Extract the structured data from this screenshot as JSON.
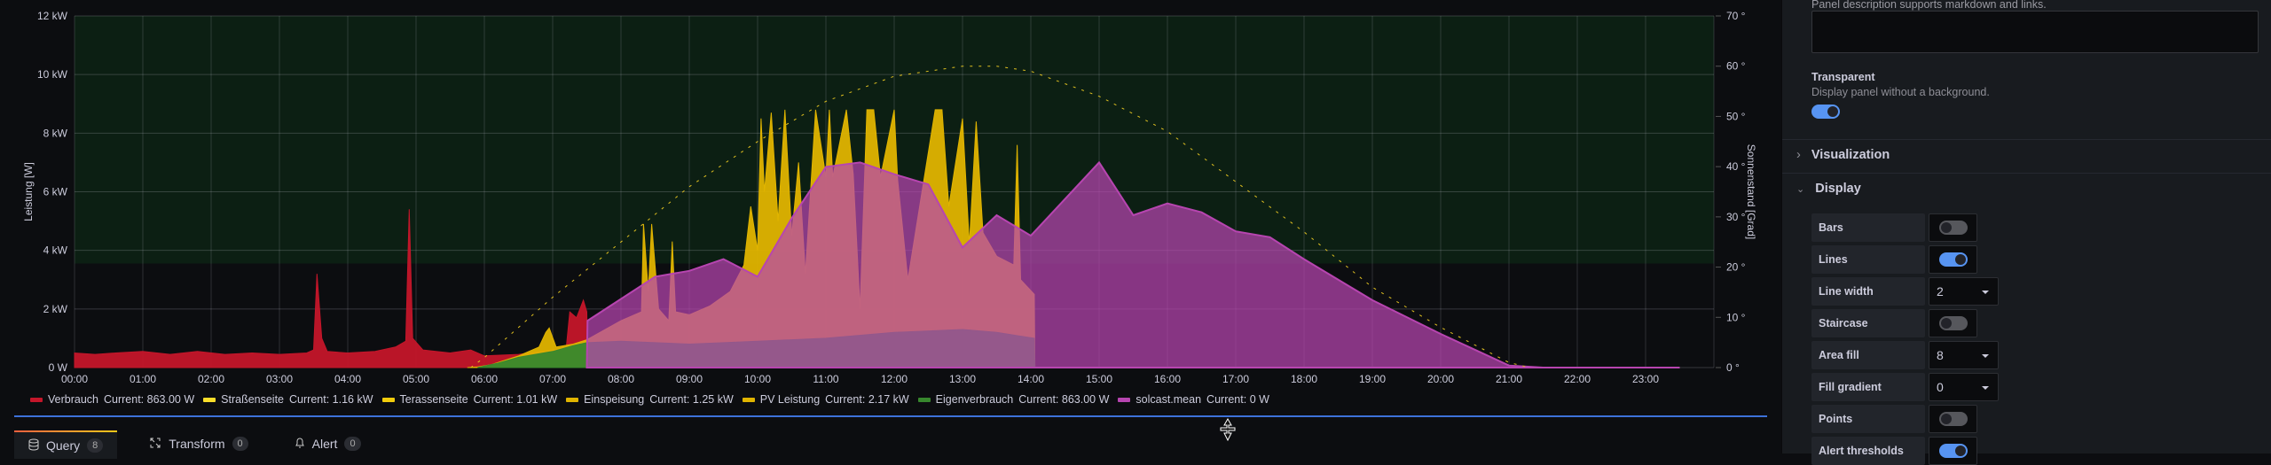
{
  "chart_data": {
    "type": "area",
    "ylabel": "Leistung [W]",
    "y2label": "Sonnenstand [Grad]",
    "ylim": [
      0,
      12000
    ],
    "y2lim": [
      0,
      70
    ],
    "yticks": [
      "0 W",
      "2 kW",
      "4 kW",
      "6 kW",
      "8 kW",
      "10 kW",
      "12 kW"
    ],
    "y2ticks": [
      "0 °",
      "10 °",
      "20 °",
      "30 °",
      "40 °",
      "50 °",
      "60 °",
      "70 °"
    ],
    "xticks": [
      "00:00",
      "01:00",
      "02:00",
      "03:00",
      "04:00",
      "05:00",
      "06:00",
      "07:00",
      "08:00",
      "09:00",
      "10:00",
      "11:00",
      "12:00",
      "13:00",
      "14:00",
      "15:00",
      "16:00",
      "17:00",
      "18:00",
      "19:00",
      "20:00",
      "21:00",
      "22:00",
      "23:00"
    ],
    "grid": true,
    "threshold": {
      "above_kw": 3.55,
      "color": "#0c1f13"
    },
    "legend_position": "bottom",
    "series": [
      {
        "name": "Verbrauch",
        "current": "863.00 W",
        "color": "#c4162a",
        "points": [
          [
            0,
            0.5
          ],
          [
            0.3,
            0.45
          ],
          [
            0.6,
            0.5
          ],
          [
            1,
            0.55
          ],
          [
            1.4,
            0.45
          ],
          [
            1.8,
            0.55
          ],
          [
            2.2,
            0.45
          ],
          [
            2.6,
            0.5
          ],
          [
            3,
            0.45
          ],
          [
            3.4,
            0.5
          ],
          [
            3.5,
            0.6
          ],
          [
            3.55,
            3.2
          ],
          [
            3.62,
            1.0
          ],
          [
            3.7,
            0.55
          ],
          [
            4,
            0.5
          ],
          [
            4.4,
            0.55
          ],
          [
            4.7,
            0.7
          ],
          [
            4.85,
            0.9
          ],
          [
            4.9,
            5.4
          ],
          [
            4.95,
            1.0
          ],
          [
            5.1,
            0.6
          ],
          [
            5.5,
            0.5
          ],
          [
            5.8,
            0.6
          ],
          [
            6,
            0.4
          ],
          [
            6.5,
            0.45
          ],
          [
            7,
            0.6
          ],
          [
            7.2,
            0.7
          ],
          [
            7.25,
            1.9
          ],
          [
            7.35,
            1.7
          ],
          [
            7.45,
            2.3
          ],
          [
            7.5,
            1.9
          ],
          [
            7.51,
            0
          ]
        ]
      },
      {
        "name": "Straßenseite",
        "current": "1.16 kW",
        "color": "#fade2a",
        "points": []
      },
      {
        "name": "Terassenseite",
        "current": "1.01 kW",
        "color": "#f2cc0c",
        "points": []
      },
      {
        "name": "Einspeisung",
        "current": "1.25 kW",
        "color": "#e0b400",
        "points": []
      },
      {
        "name": "PV Leistung",
        "current": "2.17 kW",
        "color": "#e0b400",
        "points": [
          [
            5.75,
            0
          ],
          [
            5.9,
            0.02
          ],
          [
            6.1,
            0.1
          ],
          [
            6.5,
            0.4
          ],
          [
            6.8,
            0.7
          ],
          [
            6.9,
            1.2
          ],
          [
            6.95,
            1.35
          ],
          [
            7.05,
            0.7
          ],
          [
            7.3,
            0.8
          ],
          [
            7.5,
            0.95
          ],
          [
            8,
            1.6
          ],
          [
            8.3,
            1.9
          ],
          [
            8.33,
            4.9
          ],
          [
            8.4,
            2.6
          ],
          [
            8.45,
            4.9
          ],
          [
            8.55,
            2.0
          ],
          [
            8.7,
            1.6
          ],
          [
            8.75,
            4.3
          ],
          [
            8.8,
            1.9
          ],
          [
            9.0,
            1.8
          ],
          [
            9.3,
            2.1
          ],
          [
            9.6,
            2.6
          ],
          [
            9.8,
            3.5
          ],
          [
            9.9,
            5.5
          ],
          [
            10.0,
            4.0
          ],
          [
            10.05,
            8.5
          ],
          [
            10.1,
            6.0
          ],
          [
            10.2,
            8.7
          ],
          [
            10.3,
            5.0
          ],
          [
            10.4,
            8.8
          ],
          [
            10.5,
            4.5
          ],
          [
            10.6,
            7.0
          ],
          [
            10.7,
            3.2
          ],
          [
            10.85,
            8.8
          ],
          [
            11.0,
            6.5
          ],
          [
            11.05,
            8.8
          ],
          [
            11.1,
            6.5
          ],
          [
            11.3,
            8.8
          ],
          [
            11.4,
            6.6
          ],
          [
            11.5,
            2.0
          ],
          [
            11.6,
            8.8
          ],
          [
            11.7,
            8.8
          ],
          [
            11.8,
            6.5
          ],
          [
            12.0,
            8.8
          ],
          [
            12.05,
            6.4
          ],
          [
            12.2,
            3.0
          ],
          [
            12.6,
            8.8
          ],
          [
            12.7,
            8.8
          ],
          [
            12.8,
            5.5
          ],
          [
            13.0,
            8.5
          ],
          [
            13.1,
            4.2
          ],
          [
            13.2,
            8.4
          ],
          [
            13.3,
            4.6
          ],
          [
            13.5,
            3.8
          ],
          [
            13.75,
            3.5
          ],
          [
            13.8,
            7.6
          ],
          [
            13.85,
            3.0
          ],
          [
            14.05,
            2.5
          ],
          [
            14.06,
            0
          ]
        ]
      },
      {
        "name": "Eigenverbrauch",
        "current": "863.00 W",
        "color": "#37872d",
        "points": [
          [
            5.9,
            0
          ],
          [
            6.2,
            0.15
          ],
          [
            6.5,
            0.35
          ],
          [
            7,
            0.55
          ],
          [
            7.3,
            0.75
          ],
          [
            7.5,
            0.85
          ],
          [
            8,
            0.9
          ],
          [
            9,
            0.8
          ],
          [
            10,
            0.9
          ],
          [
            11,
            1.0
          ],
          [
            12,
            1.2
          ],
          [
            13,
            1.3
          ],
          [
            13.5,
            1.2
          ],
          [
            14.05,
            1.0
          ],
          [
            14.06,
            0
          ]
        ]
      },
      {
        "name": "solcast.mean",
        "current": "0 W",
        "color": "#b745b0",
        "points": [
          [
            7.5,
            0
          ],
          [
            7.51,
            1.6
          ],
          [
            8.5,
            3.1
          ],
          [
            9,
            3.3
          ],
          [
            9.5,
            3.7
          ],
          [
            10,
            3.1
          ],
          [
            10.5,
            5.1
          ],
          [
            11,
            6.85
          ],
          [
            11.5,
            7.0
          ],
          [
            12,
            6.6
          ],
          [
            12.5,
            6.25
          ],
          [
            13,
            4.1
          ],
          [
            13.5,
            5.2
          ],
          [
            14,
            4.5
          ],
          [
            15,
            7.0
          ],
          [
            15.5,
            5.2
          ],
          [
            16,
            5.6
          ],
          [
            16.5,
            5.3
          ],
          [
            17,
            4.65
          ],
          [
            17.5,
            4.45
          ],
          [
            18,
            3.7
          ],
          [
            19,
            2.3
          ],
          [
            20,
            1.15
          ],
          [
            21,
            0.07
          ],
          [
            21.5,
            0
          ],
          [
            23.5,
            0
          ]
        ]
      }
    ],
    "sun_elevation": {
      "x": [
        5.8,
        6,
        7,
        8,
        9,
        10,
        11,
        12,
        13,
        13.5,
        14,
        15,
        16,
        17,
        18,
        19,
        20,
        21,
        21.3
      ],
      "y": [
        0,
        2,
        14,
        25,
        36,
        45,
        53,
        58,
        60,
        60,
        59,
        54,
        47,
        37,
        27,
        16,
        8,
        1,
        0
      ]
    }
  },
  "bottom_tabs": [
    {
      "label": "Query",
      "count": "8"
    },
    {
      "label": "Transform",
      "count": "0"
    },
    {
      "label": "Alert",
      "count": "0"
    }
  ],
  "options": {
    "description_hint": "Panel description supports markdown and links.",
    "transparent_label": "Transparent",
    "transparent_desc": "Display panel without a background.",
    "transparent_on": true,
    "section_visualization": "Visualization",
    "section_display": "Display",
    "rows": [
      {
        "label": "Bars",
        "type": "toggle",
        "on": false
      },
      {
        "label": "Lines",
        "type": "toggle",
        "on": true
      },
      {
        "label": "Line width",
        "type": "select",
        "value": "2"
      },
      {
        "label": "Staircase",
        "type": "toggle",
        "on": false
      },
      {
        "label": "Area fill",
        "type": "select",
        "value": "8"
      },
      {
        "label": "Fill gradient",
        "type": "select",
        "value": "0"
      },
      {
        "label": "Points",
        "type": "toggle",
        "on": false
      },
      {
        "label": "Alert thresholds",
        "type": "toggle",
        "on": true
      }
    ]
  }
}
